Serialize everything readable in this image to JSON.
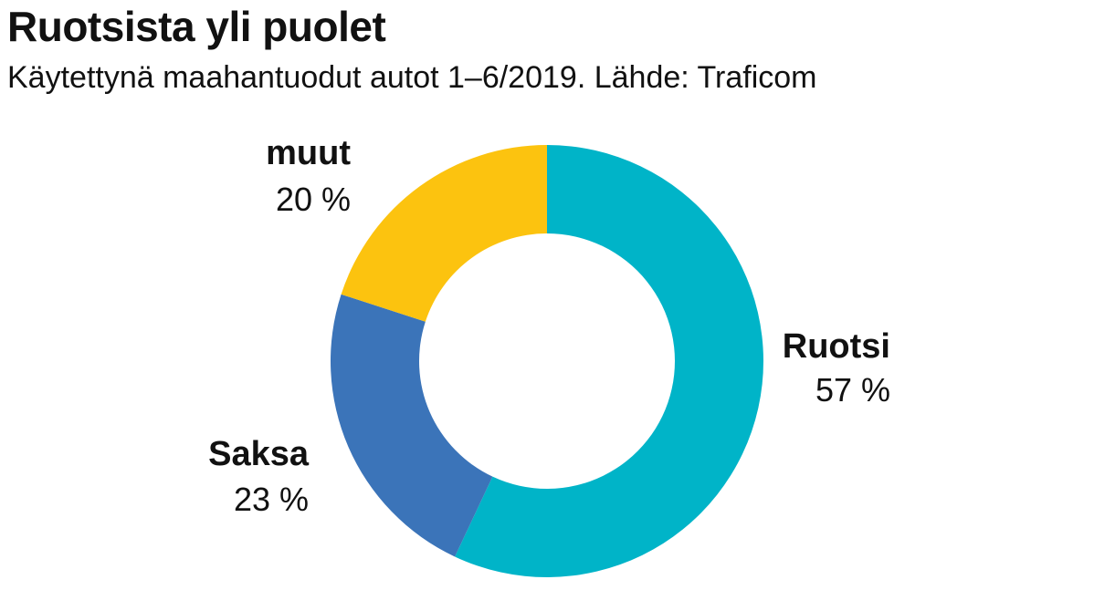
{
  "chart_data": {
    "type": "pie",
    "title": "Ruotsista yli puolet",
    "subtitle": "Käytettynä maahantuodut autot 1–6/2019. Lähde: Traficom",
    "slices": [
      {
        "name": "Ruotsi",
        "value": 57,
        "value_label": "57 %",
        "color": "#00b4c8"
      },
      {
        "name": "Saksa",
        "value": 23,
        "value_label": "23 %",
        "color": "#3b74b9"
      },
      {
        "name": "muut",
        "value": 20,
        "value_label": "20 %",
        "color": "#fcc30f"
      }
    ]
  }
}
